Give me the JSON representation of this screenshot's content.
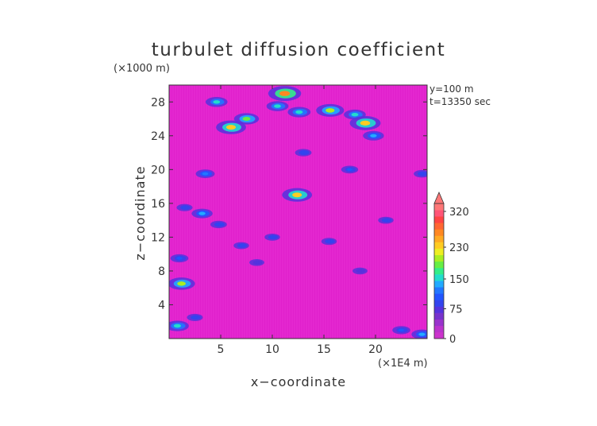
{
  "chart_data": {
    "type": "heatmap",
    "title": "turbulet diffusion coefficient",
    "xlabel": "x−coordinate",
    "ylabel": "z−coordinate",
    "x_unit": "(×1E4 m)",
    "y_unit": "(×1000 m)",
    "annotations": [
      "y=100 m",
      "t=13350 sec"
    ],
    "xlim": [
      0,
      25
    ],
    "ylim": [
      0,
      30
    ],
    "x_ticks": [
      5,
      10,
      15,
      20
    ],
    "y_ticks": [
      4,
      8,
      12,
      16,
      20,
      24,
      28
    ],
    "background_color": "#e020cc",
    "colorbar": {
      "labels": [
        "0",
        "75",
        "150",
        "230",
        "320"
      ],
      "label_values": [
        0,
        75,
        150,
        230,
        320
      ],
      "min": 0,
      "max": 340,
      "extend": "max",
      "colors": [
        "#cc33cc",
        "#bb33cc",
        "#9933cc",
        "#7733cc",
        "#5533dd",
        "#3344ee",
        "#2255ff",
        "#2277ff",
        "#22aaff",
        "#22ddcc",
        "#33ee88",
        "#66ee44",
        "#aaee22",
        "#eeee22",
        "#ffcc22",
        "#ffaa22",
        "#ff8822",
        "#ff6633",
        "#ff4444",
        "#ff5577",
        "#ff7777"
      ]
    },
    "features": [
      {
        "x": 0.8,
        "z": 1.5,
        "value": 160
      },
      {
        "x": 1.2,
        "z": 6.5,
        "value": 200
      },
      {
        "x": 1.0,
        "z": 9.5,
        "value": 110
      },
      {
        "x": 1.5,
        "z": 15.5,
        "value": 90
      },
      {
        "x": 3.2,
        "z": 14.8,
        "value": 140
      },
      {
        "x": 3.5,
        "z": 19.5,
        "value": 120
      },
      {
        "x": 4.8,
        "z": 13.5,
        "value": 95
      },
      {
        "x": 6.0,
        "z": 25.0,
        "value": 230
      },
      {
        "x": 7.5,
        "z": 26.0,
        "value": 180
      },
      {
        "x": 4.6,
        "z": 28.0,
        "value": 150
      },
      {
        "x": 10.5,
        "z": 27.5,
        "value": 150
      },
      {
        "x": 11.2,
        "z": 29.0,
        "value": 260
      },
      {
        "x": 12.6,
        "z": 26.8,
        "value": 160
      },
      {
        "x": 12.4,
        "z": 17.0,
        "value": 230
      },
      {
        "x": 15.6,
        "z": 27.0,
        "value": 210
      },
      {
        "x": 18.0,
        "z": 26.5,
        "value": 150
      },
      {
        "x": 19.0,
        "z": 25.5,
        "value": 240
      },
      {
        "x": 19.8,
        "z": 24.0,
        "value": 140
      },
      {
        "x": 17.5,
        "z": 20.0,
        "value": 100
      },
      {
        "x": 10.0,
        "z": 12.0,
        "value": 85
      },
      {
        "x": 7.0,
        "z": 11.0,
        "value": 85
      },
      {
        "x": 15.5,
        "z": 11.5,
        "value": 85
      },
      {
        "x": 18.5,
        "z": 8.0,
        "value": 80
      },
      {
        "x": 21.0,
        "z": 14.0,
        "value": 85
      },
      {
        "x": 22.5,
        "z": 1.0,
        "value": 110
      },
      {
        "x": 24.5,
        "z": 0.5,
        "value": 140
      },
      {
        "x": 24.5,
        "z": 19.5,
        "value": 95
      },
      {
        "x": 2.5,
        "z": 2.5,
        "value": 90
      },
      {
        "x": 8.5,
        "z": 9.0,
        "value": 80
      },
      {
        "x": 13.0,
        "z": 22.0,
        "value": 95
      }
    ]
  }
}
